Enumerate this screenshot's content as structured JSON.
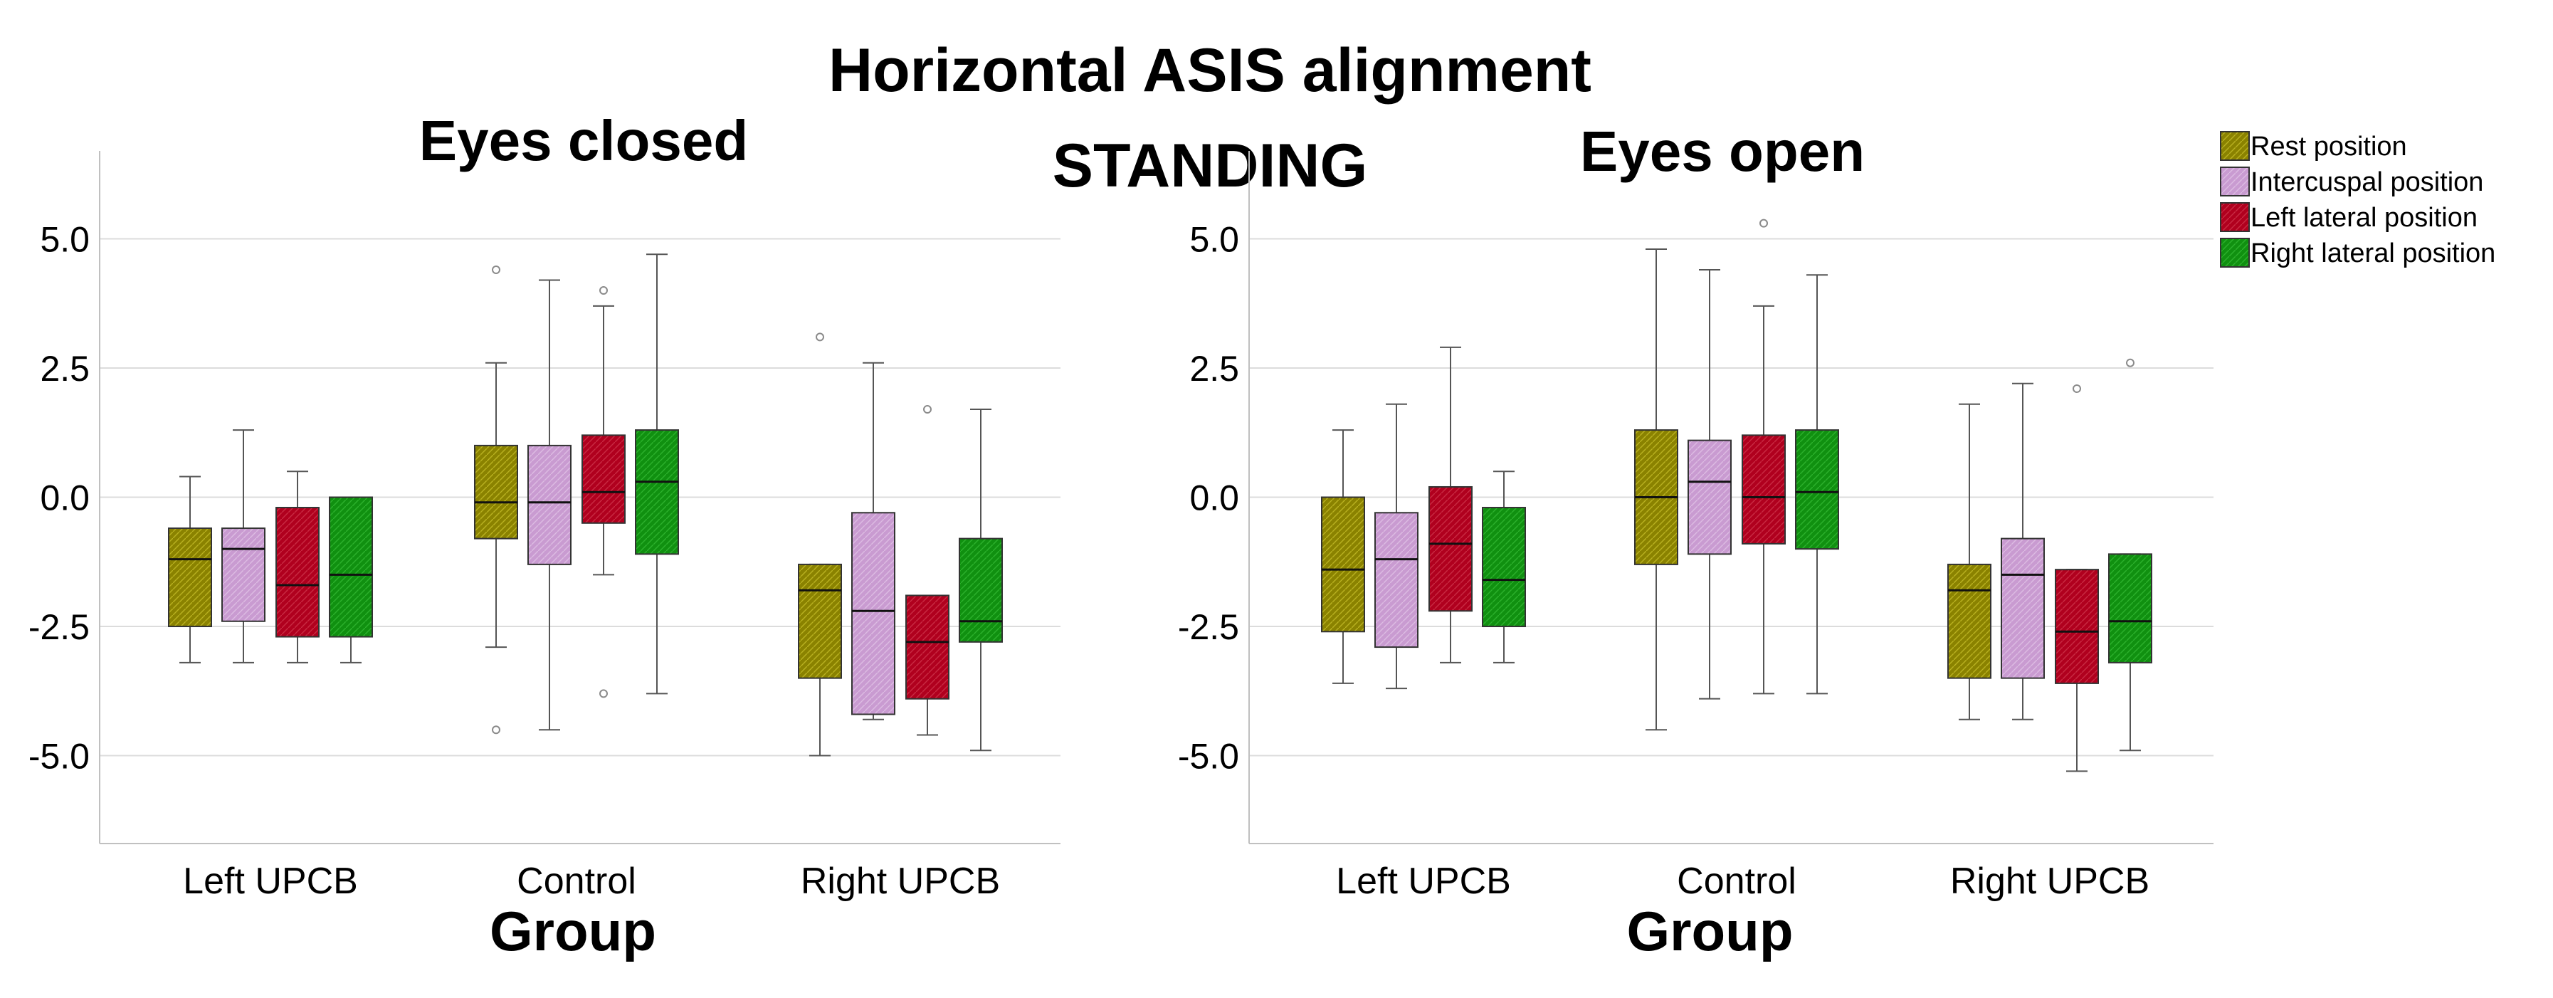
{
  "titles": {
    "main": "Horizontal ASIS alignment",
    "sub": "STANDING"
  },
  "legend": [
    {
      "label": "Rest position",
      "color": "#8a8200"
    },
    {
      "label": "Intercuspal position",
      "color": "#c99bd1"
    },
    {
      "label": "Left lateral position",
      "color": "#b0001e"
    },
    {
      "label": "Right lateral position",
      "color": "#109010"
    }
  ],
  "chart_data": [
    {
      "type": "boxplot",
      "title": "Eyes closed",
      "xlabel": "Group",
      "ylabel": "",
      "ylim": [
        -6.7,
        6.7
      ],
      "yticks": [
        5.0,
        2.5,
        0.0,
        -2.5,
        -5.0
      ],
      "ytick_labels": [
        "5.0",
        "2.5",
        "0.0",
        "-2.5",
        "-5.0"
      ],
      "categories": [
        "Left UPCB",
        "Control",
        "Right UPCB"
      ],
      "series": [
        {
          "name": "Rest position",
          "boxes": [
            {
              "min": -3.2,
              "q1": -2.5,
              "median": -1.2,
              "q3": -0.6,
              "max": 0.4,
              "outliers": []
            },
            {
              "min": -2.9,
              "q1": -0.8,
              "median": -0.1,
              "q3": 1.0,
              "max": 2.6,
              "outliers": [
                4.4,
                -4.5
              ]
            },
            {
              "min": -5.0,
              "q1": -3.5,
              "median": -1.8,
              "q3": -1.3,
              "max": -1.3,
              "outliers": [
                3.1
              ]
            }
          ]
        },
        {
          "name": "Intercuspal position",
          "boxes": [
            {
              "min": -3.2,
              "q1": -2.4,
              "median": -1.0,
              "q3": -0.6,
              "max": 1.3,
              "outliers": []
            },
            {
              "min": -4.5,
              "q1": -1.3,
              "median": -0.1,
              "q3": 1.0,
              "max": 4.2,
              "outliers": []
            },
            {
              "min": -4.3,
              "q1": -4.2,
              "median": -2.2,
              "q3": -0.3,
              "max": 2.6,
              "outliers": []
            }
          ]
        },
        {
          "name": "Left lateral position",
          "boxes": [
            {
              "min": -3.2,
              "q1": -2.7,
              "median": -1.7,
              "q3": -0.2,
              "max": 0.5,
              "outliers": []
            },
            {
              "min": -1.5,
              "q1": -0.5,
              "median": 0.1,
              "q3": 1.2,
              "max": 3.7,
              "outliers": [
                4.0,
                -3.8
              ]
            },
            {
              "min": -4.6,
              "q1": -3.9,
              "median": -2.8,
              "q3": -1.9,
              "max": -1.9,
              "outliers": [
                1.7
              ]
            }
          ]
        },
        {
          "name": "Right lateral position",
          "boxes": [
            {
              "min": -3.2,
              "q1": -2.7,
              "median": -1.5,
              "q3": 0.0,
              "max": 0.0,
              "outliers": []
            },
            {
              "min": -3.8,
              "q1": -1.1,
              "median": 0.3,
              "q3": 1.3,
              "max": 4.7,
              "outliers": []
            },
            {
              "min": -4.9,
              "q1": -2.8,
              "median": -2.4,
              "q3": -0.8,
              "max": 1.7,
              "outliers": []
            }
          ]
        }
      ]
    },
    {
      "type": "boxplot",
      "title": "Eyes open",
      "xlabel": "Group",
      "ylabel": "",
      "ylim": [
        -6.7,
        6.7
      ],
      "yticks": [
        5.0,
        2.5,
        0.0,
        -2.5,
        -5.0
      ],
      "ytick_labels": [
        "5.0",
        "2.5",
        "0.0",
        "-2.5",
        "-5.0"
      ],
      "categories": [
        "Left UPCB",
        "Control",
        "Right UPCB"
      ],
      "series": [
        {
          "name": "Rest position",
          "boxes": [
            {
              "min": -3.6,
              "q1": -2.6,
              "median": -1.4,
              "q3": 0.0,
              "max": 1.3,
              "outliers": []
            },
            {
              "min": -4.5,
              "q1": -1.3,
              "median": 0.0,
              "q3": 1.3,
              "max": 4.8,
              "outliers": []
            },
            {
              "min": -4.3,
              "q1": -3.5,
              "median": -1.8,
              "q3": -1.3,
              "max": 1.8,
              "outliers": []
            }
          ]
        },
        {
          "name": "Intercuspal position",
          "boxes": [
            {
              "min": -3.7,
              "q1": -2.9,
              "median": -1.2,
              "q3": -0.3,
              "max": 1.8,
              "outliers": []
            },
            {
              "min": -3.9,
              "q1": -1.1,
              "median": 0.3,
              "q3": 1.1,
              "max": 4.4,
              "outliers": []
            },
            {
              "min": -4.3,
              "q1": -3.5,
              "median": -1.5,
              "q3": -0.8,
              "max": 2.2,
              "outliers": []
            }
          ]
        },
        {
          "name": "Left lateral position",
          "boxes": [
            {
              "min": -3.2,
              "q1": -2.2,
              "median": -0.9,
              "q3": 0.2,
              "max": 2.9,
              "outliers": []
            },
            {
              "min": -3.8,
              "q1": -0.9,
              "median": 0.0,
              "q3": 1.2,
              "max": 3.7,
              "outliers": [
                5.3
              ]
            },
            {
              "min": -5.3,
              "q1": -3.6,
              "median": -2.6,
              "q3": -1.4,
              "max": -1.4,
              "outliers": [
                2.1
              ]
            }
          ]
        },
        {
          "name": "Right lateral position",
          "boxes": [
            {
              "min": -3.2,
              "q1": -2.5,
              "median": -1.6,
              "q3": -0.2,
              "max": 0.5,
              "outliers": []
            },
            {
              "min": -3.8,
              "q1": -1.0,
              "median": 0.1,
              "q3": 1.3,
              "max": 4.3,
              "outliers": []
            },
            {
              "min": -4.9,
              "q1": -3.2,
              "median": -2.4,
              "q3": -1.1,
              "max": -1.1,
              "outliers": [
                2.6
              ]
            }
          ]
        }
      ]
    }
  ]
}
